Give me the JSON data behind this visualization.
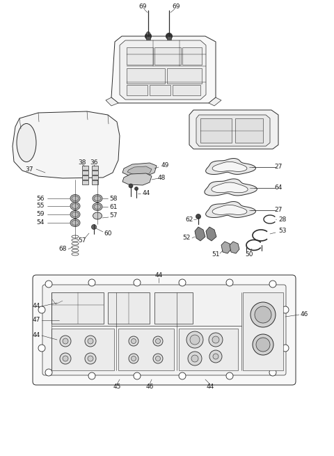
{
  "bg_color": "#ffffff",
  "line_color": "#2a2a2a",
  "label_color": "#1a1a1a",
  "label_fontsize": 6.5,
  "fig_width": 4.8,
  "fig_height": 6.55,
  "dpi": 100
}
